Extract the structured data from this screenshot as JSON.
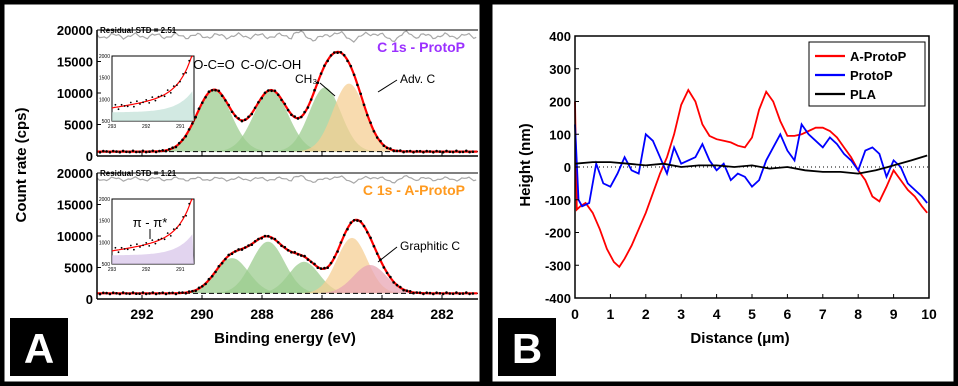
{
  "figure": {
    "panel_labels": {
      "a": "A",
      "b": "B"
    }
  },
  "chart_data": [
    {
      "type": "line",
      "panel": "A-top",
      "annotation_title": "C 1s - ProtoP",
      "annotation_title_color": "#9b30ff",
      "residual_label": "Residual STD = 2.51",
      "ylabel": "Count rate (cps)",
      "xlabel": "Binding energy (eV)",
      "xlim": [
        293.5,
        280.8
      ],
      "x_ticks": [
        292,
        290,
        288,
        286,
        284,
        282
      ],
      "ylim": [
        0,
        20000
      ],
      "y_ticks": [
        0,
        5000,
        10000,
        15000,
        20000
      ],
      "background_level": 700,
      "peaks": [
        {
          "label": "O-C=O",
          "center": 289.6,
          "height": 9800,
          "fwhm": 1.35,
          "color": "#9ccc8f"
        },
        {
          "label": "C-O/C-OH",
          "center": 287.7,
          "height": 9700,
          "fwhm": 1.35,
          "color": "#9ccc8f"
        },
        {
          "label": "CH3",
          "center": 285.9,
          "height": 10200,
          "fwhm": 1.25,
          "color": "#9ccc8f"
        },
        {
          "label": "Adv. C",
          "center": 285.1,
          "height": 10800,
          "fwhm": 1.25,
          "color": "#f6cf94"
        }
      ],
      "envelope_color": "#ff0000",
      "data_color": "#000000",
      "inset": {
        "xlim": [
          293,
          290.6
        ],
        "ylim": [
          500,
          2000
        ],
        "x_ticks": [
          293,
          292,
          291
        ],
        "y_ticks": [
          500,
          1000,
          1500,
          2000
        ],
        "note": ""
      }
    },
    {
      "type": "line",
      "panel": "A-bottom",
      "annotation_title": "C 1s - A-ProtoP",
      "annotation_title_color": "#ff9a1f",
      "residual_label": "Residual STD = 1.21",
      "xlabel": "Binding energy (eV)",
      "xlim": [
        293.5,
        280.8
      ],
      "x_ticks": [
        292,
        290,
        288,
        286,
        284,
        282
      ],
      "ylim": [
        0,
        20000
      ],
      "y_ticks": [
        0,
        5000,
        10000,
        15000,
        20000
      ],
      "background_level": 900,
      "peaks": [
        {
          "label": "",
          "center": 289.0,
          "height": 5600,
          "fwhm": 1.3,
          "color": "#9ccc8f"
        },
        {
          "label": "",
          "center": 287.8,
          "height": 8200,
          "fwhm": 1.3,
          "color": "#9ccc8f"
        },
        {
          "label": "",
          "center": 286.6,
          "height": 5000,
          "fwhm": 1.2,
          "color": "#9ccc8f"
        },
        {
          "label": "",
          "center": 285.0,
          "height": 8800,
          "fwhm": 1.2,
          "color": "#f6cf94"
        },
        {
          "label": "Graphitic C",
          "center": 284.4,
          "height": 4500,
          "fwhm": 1.3,
          "color": "#e8a5b4"
        }
      ],
      "envelope_color": "#ff0000",
      "data_color": "#000000",
      "inset": {
        "xlim": [
          293,
          290.6
        ],
        "ylim": [
          500,
          2000
        ],
        "x_ticks": [
          293,
          292,
          291
        ],
        "y_ticks": [
          500,
          1000,
          1500,
          2000
        ],
        "note": "π - π*"
      }
    },
    {
      "type": "line",
      "panel": "B",
      "xlabel": "Distance (μm)",
      "ylabel": "Height (nm)",
      "xlim": [
        0,
        10
      ],
      "x_ticks": [
        0,
        1,
        2,
        3,
        4,
        5,
        6,
        7,
        8,
        9,
        10
      ],
      "ylim": [
        -400,
        400
      ],
      "y_ticks": [
        -400,
        -300,
        -200,
        -100,
        0,
        100,
        200,
        300,
        400
      ],
      "legend_position": "top-right",
      "series": [
        {
          "name": "A-ProtoP",
          "color": "#ff0000",
          "x": [
            0,
            0.05,
            0.15,
            0.3,
            0.5,
            0.7,
            0.9,
            1.1,
            1.25,
            1.4,
            1.6,
            1.8,
            2.0,
            2.2,
            2.4,
            2.6,
            2.8,
            3.0,
            3.2,
            3.4,
            3.6,
            3.8,
            4.0,
            4.2,
            4.4,
            4.6,
            4.8,
            5.0,
            5.2,
            5.4,
            5.6,
            5.8,
            6.0,
            6.2,
            6.4,
            6.6,
            6.8,
            7.0,
            7.2,
            7.4,
            7.6,
            7.8,
            8.0,
            8.2,
            8.4,
            8.6,
            8.8,
            9.0,
            9.2,
            9.4,
            9.6,
            9.8,
            9.95
          ],
          "y": [
            200,
            -130,
            -120,
            -110,
            -140,
            -190,
            -250,
            -290,
            -305,
            -280,
            -240,
            -190,
            -140,
            -80,
            -20,
            30,
            100,
            190,
            235,
            200,
            130,
            95,
            85,
            80,
            75,
            65,
            60,
            90,
            175,
            230,
            200,
            140,
            95,
            95,
            100,
            110,
            120,
            120,
            110,
            90,
            60,
            30,
            -10,
            -40,
            -90,
            -105,
            -60,
            -10,
            -40,
            -70,
            -90,
            -120,
            -140
          ]
        },
        {
          "name": "ProtoP",
          "color": "#0000ff",
          "x": [
            0,
            0.1,
            0.2,
            0.4,
            0.6,
            0.8,
            1.0,
            1.2,
            1.4,
            1.6,
            1.8,
            2.0,
            2.2,
            2.4,
            2.6,
            2.8,
            3.0,
            3.2,
            3.4,
            3.6,
            3.8,
            4.0,
            4.2,
            4.4,
            4.6,
            4.8,
            5.0,
            5.2,
            5.4,
            5.6,
            5.8,
            6.0,
            6.2,
            6.4,
            6.6,
            6.8,
            7.0,
            7.2,
            7.4,
            7.6,
            7.8,
            8.0,
            8.2,
            8.4,
            8.6,
            8.8,
            9.0,
            9.2,
            9.4,
            9.6,
            9.8,
            9.95
          ],
          "y": [
            130,
            -100,
            -120,
            -110,
            10,
            -50,
            -60,
            -20,
            30,
            -10,
            -20,
            100,
            80,
            30,
            -20,
            60,
            10,
            20,
            30,
            70,
            20,
            -10,
            10,
            -40,
            -20,
            -30,
            -60,
            -40,
            20,
            60,
            100,
            50,
            20,
            130,
            100,
            80,
            60,
            90,
            70,
            40,
            20,
            -10,
            50,
            60,
            40,
            -30,
            20,
            0,
            -50,
            -70,
            -90,
            -110
          ]
        },
        {
          "name": "PLA",
          "color": "#000000",
          "x": [
            0,
            0.5,
            1.0,
            1.5,
            2.0,
            2.5,
            3.0,
            3.5,
            4.0,
            4.5,
            5.0,
            5.5,
            6.0,
            6.5,
            7.0,
            7.5,
            8.0,
            8.5,
            9.0,
            9.5,
            9.95
          ],
          "y": [
            10,
            15,
            15,
            10,
            5,
            10,
            0,
            5,
            5,
            0,
            5,
            -5,
            0,
            -10,
            -15,
            -15,
            -20,
            -10,
            5,
            20,
            35
          ]
        }
      ]
    }
  ]
}
